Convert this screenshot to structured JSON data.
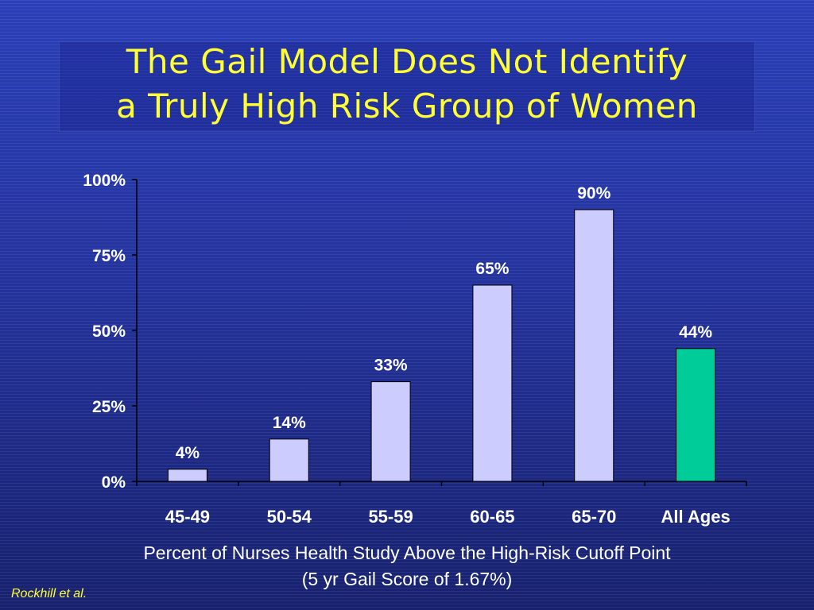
{
  "title": {
    "line1": "The Gail Model Does Not Identify",
    "line2": "a Truly High Risk Group of Women"
  },
  "chart_data": {
    "type": "bar",
    "categories": [
      "45-49",
      "50-54",
      "55-59",
      "60-65",
      "65-70",
      "All Ages"
    ],
    "values": [
      4,
      14,
      33,
      65,
      90,
      44
    ],
    "data_labels": [
      "4%",
      "14%",
      "33%",
      "65%",
      "90%",
      "44%"
    ],
    "ylim": [
      0,
      100
    ],
    "yticks": [
      0,
      25,
      50,
      75,
      100
    ],
    "ytick_labels": [
      "0%",
      "25%",
      "50%",
      "75%",
      "100%"
    ],
    "bar_colors": [
      "#ccccff",
      "#ccccff",
      "#ccccff",
      "#ccccff",
      "#ccccff",
      "#00cc99"
    ],
    "grid": false,
    "legend": "none"
  },
  "caption": {
    "line1": "Percent of Nurses Health Study Above the High-Risk Cutoff Point",
    "line2": "(5 yr Gail Score of 1.67%)"
  },
  "citation": "Rockhill et al.",
  "colors": {
    "title": "#ffff33",
    "axis": "#000000",
    "label_text": "#ffffff",
    "highlight_bar": "#00cc99"
  }
}
